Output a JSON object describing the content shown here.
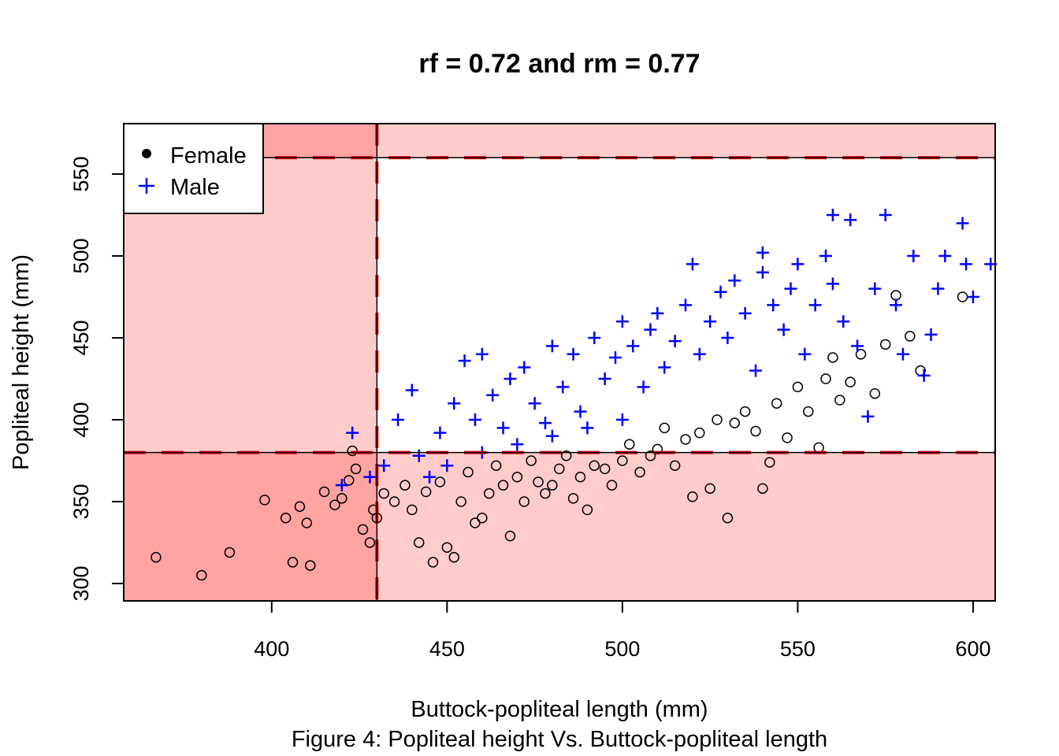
{
  "chart_data": {
    "type": "scatter",
    "title": "rf =  0.72  and rm =  0.77",
    "xlabel": "Buttock-popliteal length (mm)",
    "ylabel": "Popliteal height (mm)",
    "caption": "Figure 4: Popliteal height Vs.  Buttock-popliteal length",
    "xlim": [
      357.8,
      606.3
    ],
    "ylim": [
      289.4,
      580.8
    ],
    "xticks": [
      "400",
      "450",
      "500",
      "550",
      "600"
    ],
    "yticks": [
      "300",
      "350",
      "400",
      "450",
      "500",
      "550"
    ],
    "grid": false,
    "legend_position": "top-left",
    "thresholds": {
      "x_min": 430,
      "y_min": 380,
      "y_max": 560
    },
    "colors": {
      "female": "#000000",
      "male": "#0000ff",
      "threshold_line": "#dd0000",
      "shade_light": "#ffcccc",
      "shade_dark": "#ffa3a3"
    },
    "series": [
      {
        "name": "Female",
        "marker": "open-circle",
        "points": [
          [
            367,
            316
          ],
          [
            380,
            305
          ],
          [
            388,
            319
          ],
          [
            398,
            351
          ],
          [
            404,
            340
          ],
          [
            406,
            313
          ],
          [
            411,
            311
          ],
          [
            408,
            347
          ],
          [
            410,
            337
          ],
          [
            415,
            356
          ],
          [
            418,
            348
          ],
          [
            420,
            352
          ],
          [
            422,
            363
          ],
          [
            423,
            381
          ],
          [
            424,
            370
          ],
          [
            426,
            333
          ],
          [
            428,
            325
          ],
          [
            429,
            345
          ],
          [
            430,
            340
          ],
          [
            432,
            355
          ],
          [
            435,
            350
          ],
          [
            438,
            360
          ],
          [
            440,
            345
          ],
          [
            442,
            325
          ],
          [
            444,
            356
          ],
          [
            446,
            313
          ],
          [
            448,
            362
          ],
          [
            450,
            322
          ],
          [
            452,
            316
          ],
          [
            454,
            350
          ],
          [
            456,
            368
          ],
          [
            458,
            337
          ],
          [
            460,
            340
          ],
          [
            462,
            355
          ],
          [
            464,
            372
          ],
          [
            466,
            360
          ],
          [
            468,
            329
          ],
          [
            470,
            365
          ],
          [
            472,
            350
          ],
          [
            474,
            375
          ],
          [
            476,
            362
          ],
          [
            478,
            355
          ],
          [
            480,
            360
          ],
          [
            482,
            370
          ],
          [
            484,
            378
          ],
          [
            486,
            352
          ],
          [
            488,
            365
          ],
          [
            490,
            345
          ],
          [
            492,
            372
          ],
          [
            495,
            370
          ],
          [
            497,
            360
          ],
          [
            500,
            375
          ],
          [
            502,
            385
          ],
          [
            505,
            368
          ],
          [
            508,
            378
          ],
          [
            510,
            382
          ],
          [
            512,
            395
          ],
          [
            515,
            372
          ],
          [
            518,
            388
          ],
          [
            520,
            353
          ],
          [
            522,
            392
          ],
          [
            525,
            358
          ],
          [
            527,
            400
          ],
          [
            530,
            340
          ],
          [
            532,
            398
          ],
          [
            535,
            405
          ],
          [
            538,
            393
          ],
          [
            540,
            358
          ],
          [
            542,
            374
          ],
          [
            544,
            410
          ],
          [
            547,
            389
          ],
          [
            550,
            420
          ],
          [
            553,
            405
          ],
          [
            556,
            383
          ],
          [
            558,
            425
          ],
          [
            560,
            438
          ],
          [
            562,
            412
          ],
          [
            565,
            423
          ],
          [
            568,
            440
          ],
          [
            572,
            416
          ],
          [
            575,
            446
          ],
          [
            578,
            476
          ],
          [
            582,
            451
          ],
          [
            585,
            430
          ],
          [
            597,
            475
          ]
        ]
      },
      {
        "name": "Male",
        "marker": "plus",
        "points": [
          [
            420,
            360
          ],
          [
            423,
            392
          ],
          [
            428,
            365
          ],
          [
            432,
            372
          ],
          [
            436,
            400
          ],
          [
            440,
            418
          ],
          [
            442,
            378
          ],
          [
            445,
            365
          ],
          [
            448,
            392
          ],
          [
            450,
            372
          ],
          [
            452,
            410
          ],
          [
            455,
            436
          ],
          [
            458,
            400
          ],
          [
            460,
            380
          ],
          [
            460,
            440
          ],
          [
            463,
            415
          ],
          [
            466,
            395
          ],
          [
            468,
            425
          ],
          [
            470,
            385
          ],
          [
            472,
            432
          ],
          [
            475,
            410
          ],
          [
            478,
            398
          ],
          [
            480,
            390
          ],
          [
            480,
            445
          ],
          [
            483,
            420
          ],
          [
            486,
            440
          ],
          [
            488,
            405
          ],
          [
            490,
            395
          ],
          [
            492,
            450
          ],
          [
            495,
            425
          ],
          [
            498,
            438
          ],
          [
            500,
            400
          ],
          [
            500,
            460
          ],
          [
            503,
            445
          ],
          [
            506,
            420
          ],
          [
            508,
            455
          ],
          [
            510,
            465
          ],
          [
            512,
            432
          ],
          [
            515,
            448
          ],
          [
            518,
            470
          ],
          [
            520,
            495
          ],
          [
            522,
            440
          ],
          [
            525,
            460
          ],
          [
            528,
            478
          ],
          [
            530,
            450
          ],
          [
            532,
            485
          ],
          [
            535,
            465
          ],
          [
            538,
            430
          ],
          [
            540,
            490
          ],
          [
            540,
            502
          ],
          [
            543,
            470
          ],
          [
            546,
            455
          ],
          [
            548,
            480
          ],
          [
            550,
            495
          ],
          [
            552,
            440
          ],
          [
            555,
            470
          ],
          [
            558,
            500
          ],
          [
            560,
            483
          ],
          [
            560,
            525
          ],
          [
            563,
            460
          ],
          [
            565,
            522
          ],
          [
            567,
            445
          ],
          [
            570,
            402
          ],
          [
            572,
            480
          ],
          [
            575,
            525
          ],
          [
            578,
            470
          ],
          [
            580,
            440
          ],
          [
            583,
            500
          ],
          [
            586,
            427
          ],
          [
            588,
            452
          ],
          [
            590,
            480
          ],
          [
            592,
            500
          ],
          [
            597,
            520
          ],
          [
            598,
            495
          ],
          [
            600,
            475
          ],
          [
            605,
            495
          ]
        ]
      }
    ]
  }
}
